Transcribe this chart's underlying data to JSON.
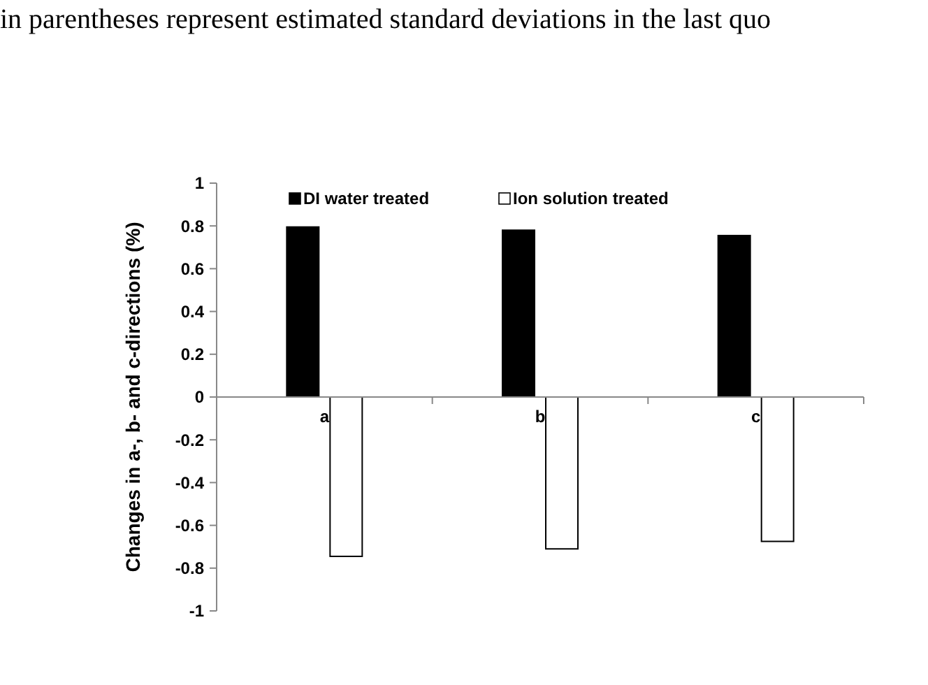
{
  "chart_data": {
    "type": "bar",
    "annotations": [
      "in parentheses represent estimated standard deviations in the last quo"
    ],
    "ylabel": "Changes in a-, b- and c-directions (%)",
    "categories": [
      "a",
      "b",
      "c"
    ],
    "series": [
      {
        "name": "DI water treated",
        "color": "#000000",
        "values": [
          0.795,
          0.78,
          0.755
        ]
      },
      {
        "name": "Ion solution treated",
        "color": "#ffffff",
        "values": [
          -0.745,
          -0.71,
          -0.675
        ]
      }
    ],
    "ylim": [
      -1,
      1
    ],
    "yticks": [
      -1,
      -0.8,
      -0.6,
      -0.4,
      -0.2,
      0,
      0.2,
      0.4,
      0.6,
      0.8,
      1
    ],
    "legend": "top",
    "grid": false
  }
}
